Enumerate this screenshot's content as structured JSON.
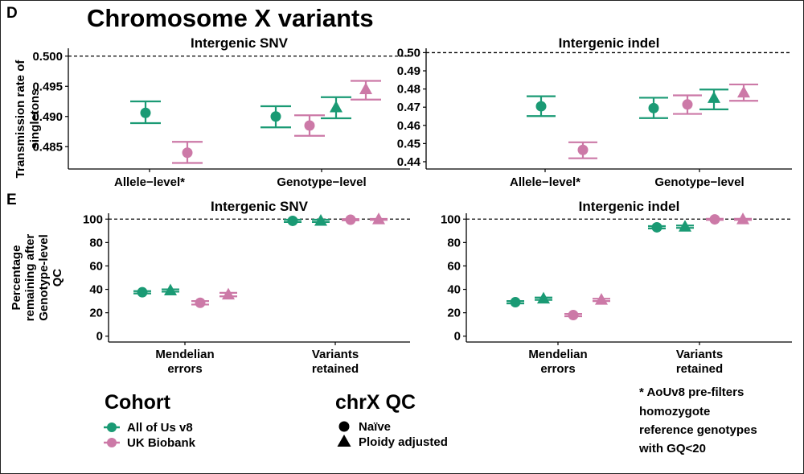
{
  "header": {
    "panel_d_letter": "D",
    "panel_e_letter": "E",
    "main_title": "Chromosome X variants",
    "ylabel_d_line1": "Transmission rate of",
    "ylabel_d_line2": "singletons",
    "ylabel_e_line1": "Percentage",
    "ylabel_e_line2": "remaining after",
    "ylabel_e_line3": "Genotype-level",
    "ylabel_e_line4": "QC"
  },
  "colors": {
    "aou": "#1a9a74",
    "ukb": "#cc79a7"
  },
  "legend": {
    "cohort_title": "Cohort",
    "cohort_items": [
      "All of Us v8",
      "UK Biobank"
    ],
    "qc_title": "chrX QC",
    "qc_items": [
      "Naïve",
      "Ploidy adjusted"
    ]
  },
  "note": {
    "line1": "* AoUv8 pre-filters",
    "line2": "homozygote",
    "line3": "reference genotypes",
    "line4": "with GQ<20"
  },
  "chart_data": [
    {
      "id": "D-snv",
      "type": "scatter",
      "title": "Intergenic SNV",
      "categories": [
        "Allele−level*",
        "Genotype−level"
      ],
      "ylim": [
        0.4813,
        0.5013
      ],
      "yticks": [
        0.485,
        0.49,
        0.495,
        0.5
      ],
      "ytick_labels": [
        "0.485",
        "0.490",
        "0.495",
        "0.500"
      ],
      "reference_line": 0.5,
      "points": [
        {
          "category": 0,
          "cohort": "All of Us v8",
          "qc": "Naïve",
          "y": 0.4906,
          "lo": 0.4889,
          "hi": 0.4925
        },
        {
          "category": 0,
          "cohort": "UK Biobank",
          "qc": "Naïve",
          "y": 0.484,
          "lo": 0.4823,
          "hi": 0.4858
        },
        {
          "category": 1,
          "cohort": "All of Us v8",
          "qc": "Naïve",
          "y": 0.49,
          "lo": 0.4882,
          "hi": 0.4917
        },
        {
          "category": 1,
          "cohort": "UK Biobank",
          "qc": "Naïve",
          "y": 0.4885,
          "lo": 0.4868,
          "hi": 0.4902
        },
        {
          "category": 1,
          "cohort": "All of Us v8",
          "qc": "Ploidy adjusted",
          "y": 0.4915,
          "lo": 0.4897,
          "hi": 0.4932
        },
        {
          "category": 1,
          "cohort": "UK Biobank",
          "qc": "Ploidy adjusted",
          "y": 0.4945,
          "lo": 0.4928,
          "hi": 0.4959
        }
      ]
    },
    {
      "id": "D-indel",
      "type": "scatter",
      "title": "Intergenic indel",
      "categories": [
        "Allele−level*",
        "Genotype−level"
      ],
      "ylim": [
        0.436,
        0.5024
      ],
      "yticks": [
        0.44,
        0.45,
        0.46,
        0.47,
        0.48,
        0.49,
        0.5
      ],
      "ytick_labels": [
        "0.44",
        "0.45",
        "0.46",
        "0.47",
        "0.48",
        "0.49",
        "0.50"
      ],
      "reference_line": 0.5,
      "points": [
        {
          "category": 0,
          "cohort": "All of Us v8",
          "qc": "Naïve",
          "y": 0.4705,
          "lo": 0.4651,
          "hi": 0.476
        },
        {
          "category": 0,
          "cohort": "UK Biobank",
          "qc": "Naïve",
          "y": 0.4465,
          "lo": 0.4419,
          "hi": 0.4507
        },
        {
          "category": 1,
          "cohort": "All of Us v8",
          "qc": "Naïve",
          "y": 0.4695,
          "lo": 0.464,
          "hi": 0.4752
        },
        {
          "category": 1,
          "cohort": "UK Biobank",
          "qc": "Naïve",
          "y": 0.4715,
          "lo": 0.4663,
          "hi": 0.4765
        },
        {
          "category": 1,
          "cohort": "All of Us v8",
          "qc": "Ploidy adjusted",
          "y": 0.475,
          "lo": 0.4688,
          "hi": 0.4797
        },
        {
          "category": 1,
          "cohort": "UK Biobank",
          "qc": "Ploidy adjusted",
          "y": 0.478,
          "lo": 0.4735,
          "hi": 0.4825
        }
      ]
    },
    {
      "id": "E-snv",
      "type": "scatter",
      "title": "Intergenic SNV",
      "categories": [
        "Mendelian\nerrors",
        "Variants\nretained"
      ],
      "ylim": [
        -5,
        105
      ],
      "yticks": [
        0,
        20,
        40,
        60,
        80,
        100
      ],
      "ytick_labels": [
        "0",
        "20",
        "40",
        "60",
        "80",
        "100"
      ],
      "reference_line": 100,
      "points": [
        {
          "category": 0,
          "cohort": "All of Us v8",
          "qc": "Naïve",
          "y": 37.5,
          "lo": 36.5,
          "hi": 38.5
        },
        {
          "category": 0,
          "cohort": "All of Us v8",
          "qc": "Ploidy adjusted",
          "y": 39.0,
          "lo": 38.0,
          "hi": 40.0
        },
        {
          "category": 0,
          "cohort": "UK Biobank",
          "qc": "Naïve",
          "y": 28.5,
          "lo": 27.0,
          "hi": 30.0
        },
        {
          "category": 0,
          "cohort": "UK Biobank",
          "qc": "Ploidy adjusted",
          "y": 35.5,
          "lo": 34.0,
          "hi": 37.0
        },
        {
          "category": 1,
          "cohort": "All of Us v8",
          "qc": "Naïve",
          "y": 98.5,
          "lo": 97.5,
          "hi": 99.5
        },
        {
          "category": 1,
          "cohort": "All of Us v8",
          "qc": "Ploidy adjusted",
          "y": 98.5,
          "lo": 97.5,
          "hi": 99.5
        },
        {
          "category": 1,
          "cohort": "UK Biobank",
          "qc": "Naïve",
          "y": 99.5,
          "lo": 99.0,
          "hi": 100.0
        },
        {
          "category": 1,
          "cohort": "UK Biobank",
          "qc": "Ploidy adjusted",
          "y": 99.8,
          "lo": 99.3,
          "hi": 100.2
        }
      ]
    },
    {
      "id": "E-indel",
      "type": "scatter",
      "title": "Intergenic indel",
      "categories": [
        "Mendelian\nerrors",
        "Variants\nretained"
      ],
      "ylim": [
        -5,
        105
      ],
      "yticks": [
        0,
        20,
        40,
        60,
        80,
        100
      ],
      "ytick_labels": [
        "0",
        "20",
        "40",
        "60",
        "80",
        "100"
      ],
      "reference_line": 100,
      "points": [
        {
          "category": 0,
          "cohort": "All of Us v8",
          "qc": "Naïve",
          "y": 29.0,
          "lo": 28.0,
          "hi": 30.0
        },
        {
          "category": 0,
          "cohort": "All of Us v8",
          "qc": "Ploidy adjusted",
          "y": 32.0,
          "lo": 31.0,
          "hi": 33.0
        },
        {
          "category": 0,
          "cohort": "UK Biobank",
          "qc": "Naïve",
          "y": 18.0,
          "lo": 17.0,
          "hi": 19.0
        },
        {
          "category": 0,
          "cohort": "UK Biobank",
          "qc": "Ploidy adjusted",
          "y": 31.0,
          "lo": 30.0,
          "hi": 32.0
        },
        {
          "category": 1,
          "cohort": "All of Us v8",
          "qc": "Naïve",
          "y": 93.0,
          "lo": 92.0,
          "hi": 94.0
        },
        {
          "category": 1,
          "cohort": "All of Us v8",
          "qc": "Ploidy adjusted",
          "y": 93.5,
          "lo": 92.5,
          "hi": 94.5
        },
        {
          "category": 1,
          "cohort": "UK Biobank",
          "qc": "Naïve",
          "y": 99.8,
          "lo": 99.3,
          "hi": 100.3
        },
        {
          "category": 1,
          "cohort": "UK Biobank",
          "qc": "Ploidy adjusted",
          "y": 99.8,
          "lo": 99.3,
          "hi": 100.3
        }
      ]
    }
  ]
}
